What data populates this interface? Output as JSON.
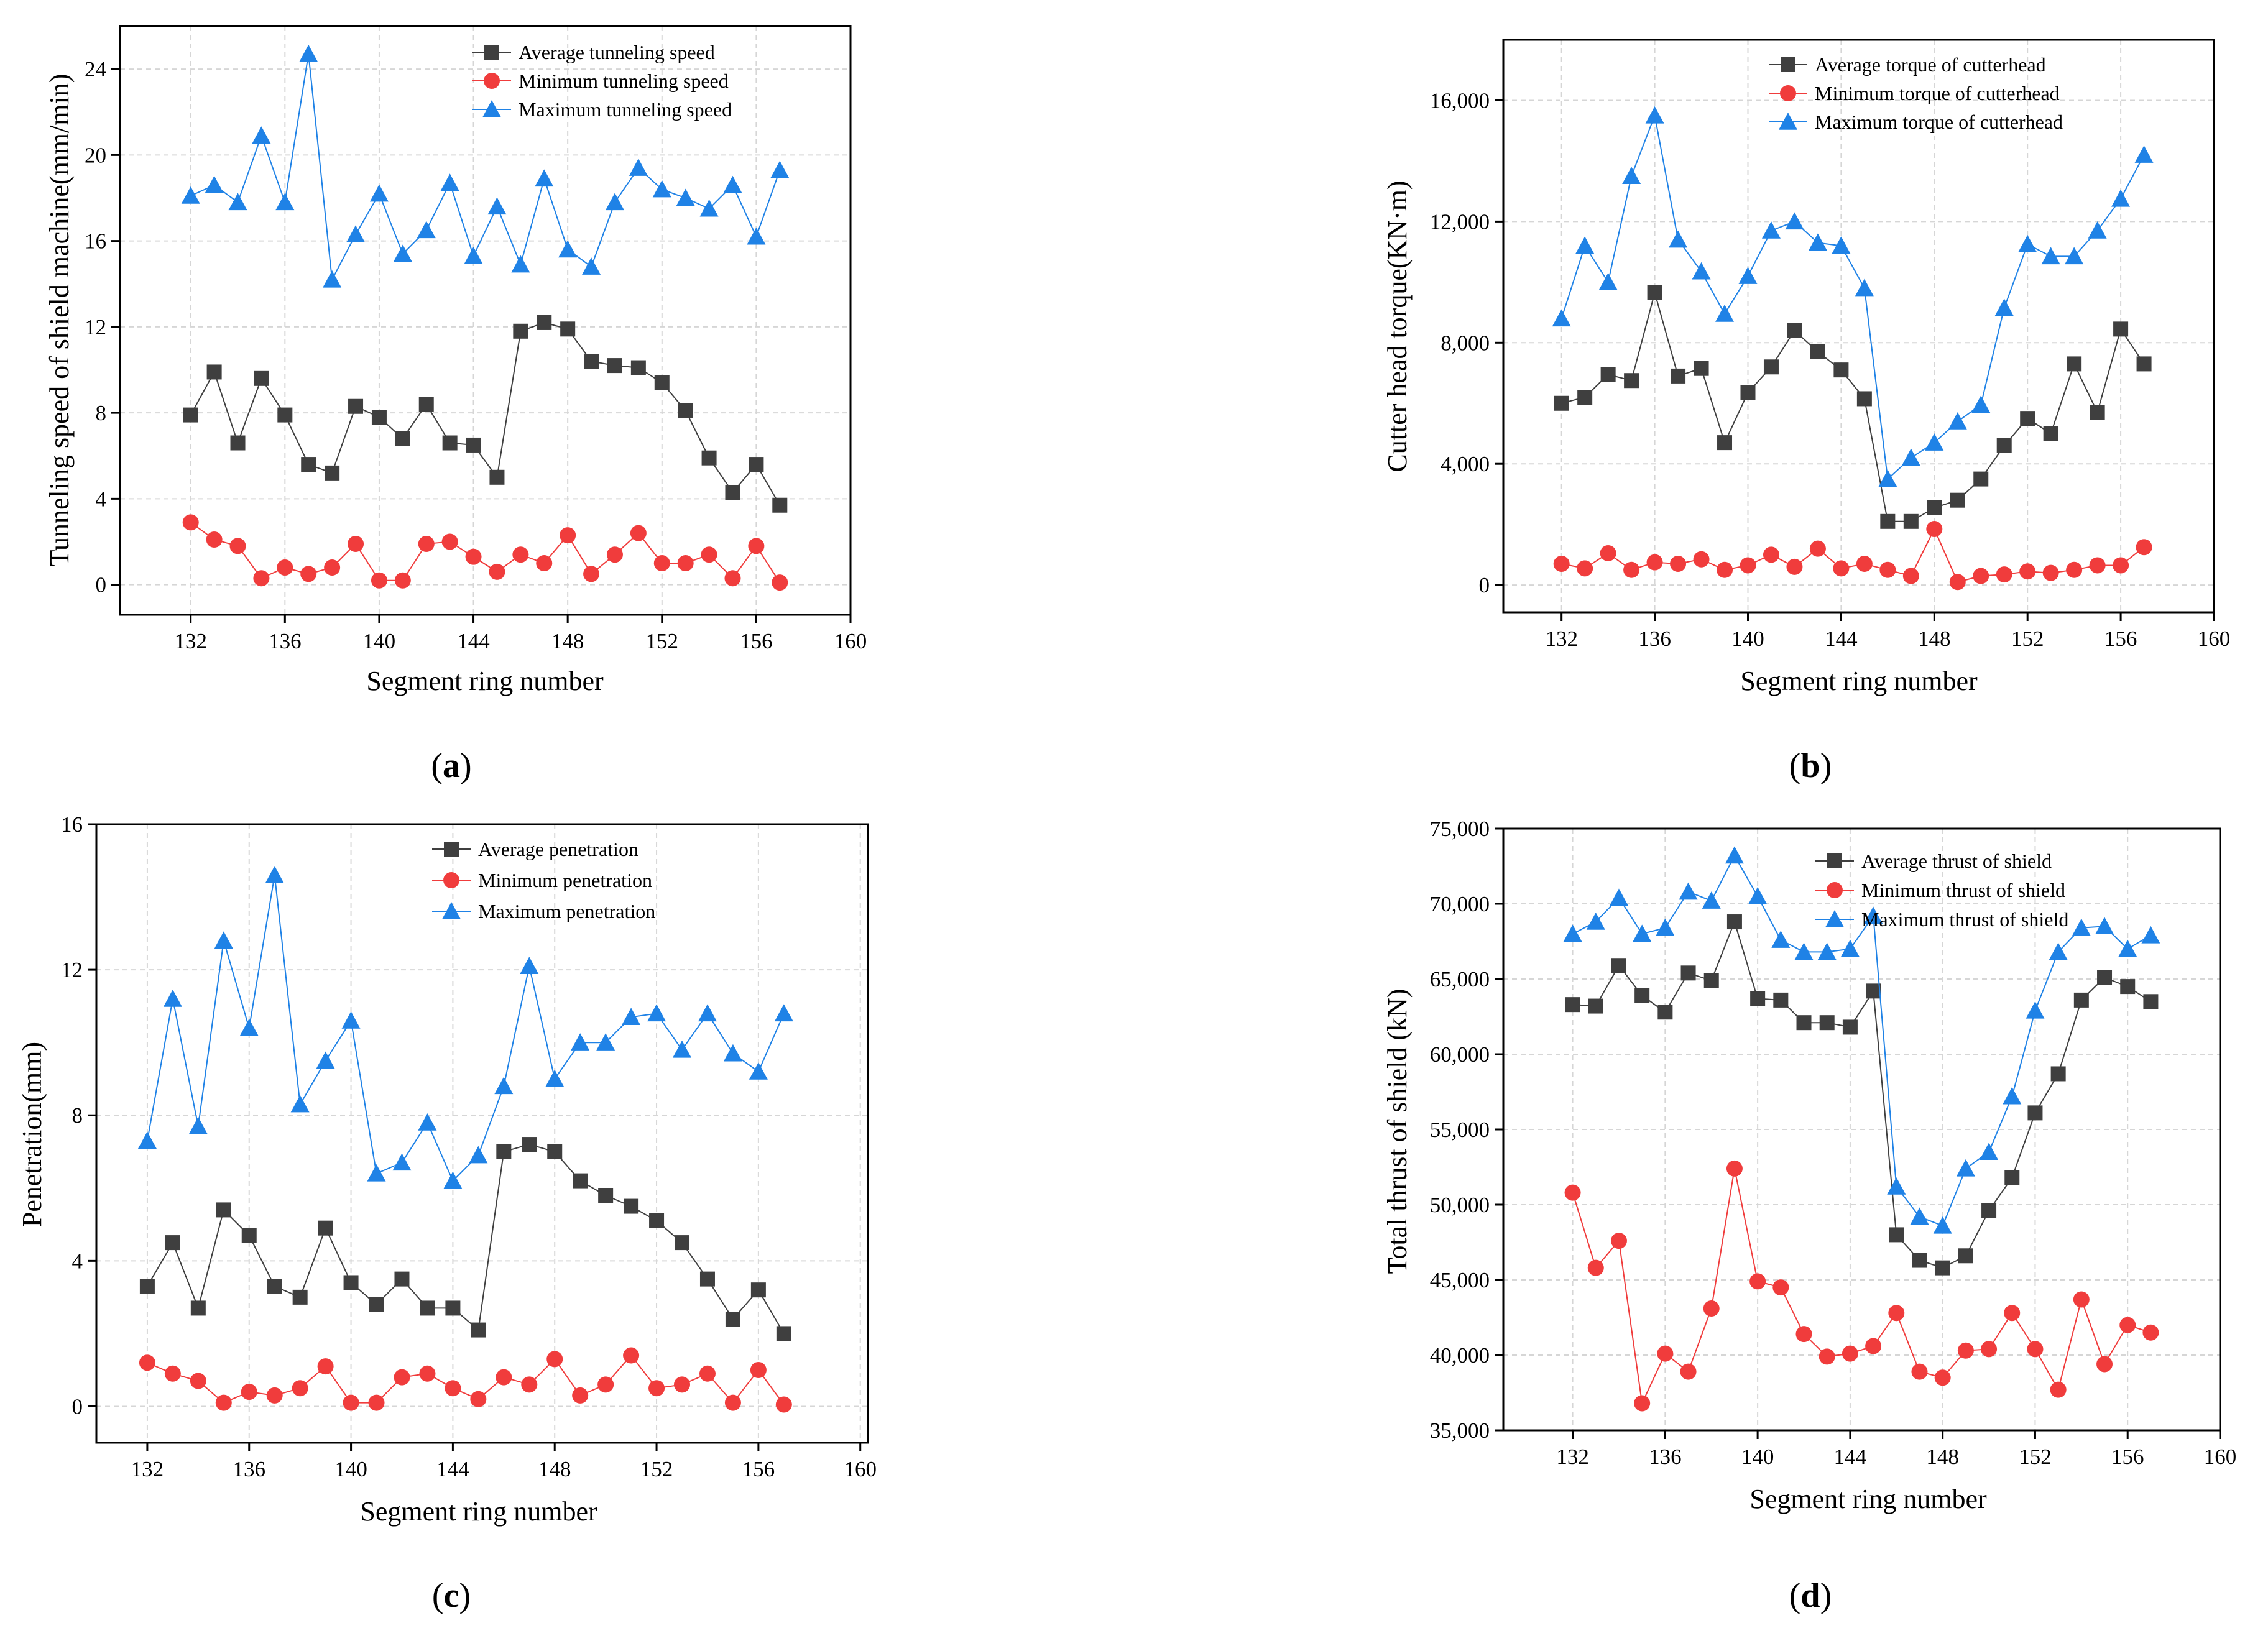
{
  "chart_data": [
    {
      "type": "line",
      "panel": "(a)",
      "panel_letter": "a",
      "xlabel": "Segment ring number",
      "ylabel": "Tunneling speed of shield machine(mm/min)",
      "xlim": [
        129,
        160
      ],
      "ylim": [
        -1.4,
        26
      ],
      "xticks": [
        132,
        136,
        140,
        144,
        148,
        152,
        156,
        160
      ],
      "xtick_labels": [
        "132",
        "136",
        "140",
        "144",
        "148",
        "152",
        "156",
        "160"
      ],
      "yticks": [
        0,
        4,
        8,
        12,
        16,
        20,
        24
      ],
      "ytick_labels": [
        "0",
        "4",
        "8",
        "12",
        "16",
        "20",
        "24"
      ],
      "grid": true,
      "legend_position": "top-right",
      "x": [
        132,
        133,
        134,
        135,
        136,
        137,
        138,
        139,
        140,
        141,
        142,
        143,
        144,
        145,
        146,
        147,
        148,
        149,
        150,
        151,
        152,
        153,
        154,
        155,
        156,
        157
      ],
      "series": [
        {
          "name": "Average tunneling speed",
          "marker": "square",
          "color": "#3f3f3f",
          "values": [
            7.9,
            9.9,
            6.6,
            9.6,
            7.9,
            5.6,
            5.2,
            8.3,
            7.8,
            6.8,
            8.4,
            6.6,
            6.5,
            5.0,
            11.8,
            12.2,
            11.9,
            10.4,
            10.2,
            10.1,
            9.4,
            8.1,
            5.9,
            4.3,
            5.6,
            3.7
          ]
        },
        {
          "name": "Minimum tunneling speed",
          "marker": "circle",
          "color": "#f03c3c",
          "values": [
            2.9,
            2.1,
            1.8,
            0.3,
            0.8,
            0.5,
            0.8,
            1.9,
            0.2,
            0.2,
            1.9,
            2.0,
            1.3,
            0.6,
            1.4,
            1.0,
            2.3,
            0.5,
            1.4,
            2.4,
            1.0,
            1.0,
            1.4,
            0.3,
            1.8,
            0.1
          ]
        },
        {
          "name": "Maximum tunneling speed",
          "marker": "triangle",
          "color": "#1f82e6",
          "values": [
            18.1,
            18.6,
            17.8,
            20.9,
            17.8,
            24.7,
            14.2,
            16.3,
            18.2,
            15.4,
            16.5,
            18.7,
            15.3,
            17.6,
            14.9,
            18.9,
            15.6,
            14.8,
            17.8,
            19.4,
            18.4,
            18.0,
            17.5,
            18.6,
            16.2,
            19.3
          ]
        }
      ]
    },
    {
      "type": "line",
      "panel": "(b)",
      "panel_letter": "b",
      "xlabel": "Segment ring number",
      "ylabel": "Cutter head torque(KN·m)",
      "xlim": [
        129.5,
        160
      ],
      "ylim": [
        -900,
        18000
      ],
      "xticks": [
        132,
        136,
        140,
        144,
        148,
        152,
        156,
        160
      ],
      "xtick_labels": [
        "132",
        "136",
        "140",
        "144",
        "148",
        "152",
        "156",
        "160"
      ],
      "yticks": [
        0,
        4000,
        8000,
        12000,
        16000
      ],
      "ytick_labels": [
        "0",
        "4,000",
        "8,000",
        "12,000",
        "16,000"
      ],
      "grid": true,
      "legend_position": "top-right",
      "x": [
        132,
        133,
        134,
        135,
        136,
        137,
        138,
        139,
        140,
        141,
        142,
        143,
        144,
        145,
        146,
        147,
        148,
        149,
        150,
        151,
        152,
        153,
        154,
        155,
        156,
        157
      ],
      "series": [
        {
          "name": "Average torque of cutterhead",
          "marker": "square",
          "color": "#3f3f3f",
          "values": [
            6000,
            6200,
            6950,
            6750,
            9650,
            6900,
            7150,
            4700,
            6350,
            7200,
            8400,
            7700,
            7100,
            6150,
            2100,
            2100,
            2550,
            2800,
            3500,
            4600,
            5500,
            5000,
            7300,
            5700,
            8450,
            7300
          ]
        },
        {
          "name": "Minimum torque of cutterhead",
          "marker": "circle",
          "color": "#f03c3c",
          "values": [
            700,
            550,
            1050,
            500,
            750,
            700,
            850,
            500,
            650,
            1000,
            600,
            1200,
            550,
            700,
            500,
            300,
            1850,
            100,
            300,
            350,
            450,
            400,
            500,
            650,
            650,
            1250
          ]
        },
        {
          "name": "Maximum torque of cutterhead",
          "marker": "triangle",
          "color": "#1f82e6",
          "values": [
            8800,
            11200,
            10000,
            13500,
            15500,
            11400,
            10350,
            8950,
            10200,
            11700,
            12000,
            11300,
            11200,
            9800,
            3500,
            4200,
            4700,
            5400,
            5950,
            9150,
            11250,
            10850,
            10850,
            11700,
            12750,
            14200
          ]
        }
      ]
    },
    {
      "type": "line",
      "panel": "(c)",
      "panel_letter": "c",
      "xlabel": "Segment ring number",
      "ylabel": "Penetration(mm)",
      "xlim": [
        130,
        160.3
      ],
      "ylim": [
        -1.0,
        16
      ],
      "xticks": [
        132,
        136,
        140,
        144,
        148,
        152,
        156,
        160
      ],
      "xtick_labels": [
        "132",
        "136",
        "140",
        "144",
        "148",
        "152",
        "156",
        "160"
      ],
      "yticks": [
        0,
        4,
        8,
        12,
        16
      ],
      "ytick_labels": [
        "0",
        "4",
        "8",
        "12",
        "16"
      ],
      "grid": true,
      "legend_position": "top-right",
      "x": [
        132,
        133,
        134,
        135,
        136,
        137,
        138,
        139,
        140,
        141,
        142,
        143,
        144,
        145,
        146,
        147,
        148,
        149,
        150,
        151,
        152,
        153,
        154,
        155,
        156,
        157
      ],
      "series": [
        {
          "name": "Average penetration",
          "marker": "square",
          "color": "#3f3f3f",
          "values": [
            3.3,
            4.5,
            2.7,
            5.4,
            4.7,
            3.3,
            3.0,
            4.9,
            3.4,
            2.8,
            3.5,
            2.7,
            2.7,
            2.1,
            7.0,
            7.2,
            7.0,
            6.2,
            5.8,
            5.5,
            5.1,
            4.5,
            3.5,
            2.4,
            3.2,
            2.0
          ]
        },
        {
          "name": "Minimum penetration",
          "marker": "circle",
          "color": "#f03c3c",
          "values": [
            1.2,
            0.9,
            0.7,
            0.1,
            0.4,
            0.3,
            0.5,
            1.1,
            0.1,
            0.1,
            0.8,
            0.9,
            0.5,
            0.2,
            0.8,
            0.6,
            1.3,
            0.3,
            0.6,
            1.4,
            0.5,
            0.6,
            0.9,
            0.1,
            1.0,
            0.05
          ]
        },
        {
          "name": "Maximum penetration",
          "marker": "triangle",
          "color": "#1f82e6",
          "values": [
            7.3,
            11.2,
            7.7,
            12.8,
            10.4,
            14.6,
            8.3,
            9.5,
            10.6,
            6.4,
            6.7,
            7.8,
            6.2,
            6.9,
            8.8,
            12.1,
            9.0,
            10.0,
            10.0,
            10.7,
            10.8,
            9.8,
            10.8,
            9.7,
            9.2,
            10.8
          ]
        }
      ]
    },
    {
      "type": "line",
      "panel": "(d)",
      "panel_letter": "d",
      "xlabel": "Segment ring number",
      "ylabel": "Total thrust of shield (kN)",
      "xlim": [
        129,
        160
      ],
      "ylim": [
        35000,
        75000
      ],
      "xticks": [
        132,
        136,
        140,
        144,
        148,
        152,
        156,
        160
      ],
      "xtick_labels": [
        "132",
        "136",
        "140",
        "144",
        "148",
        "152",
        "156",
        "160"
      ],
      "yticks": [
        35000,
        40000,
        45000,
        50000,
        55000,
        60000,
        65000,
        70000,
        75000
      ],
      "ytick_labels": [
        "35,000",
        "40,000",
        "45,000",
        "50,000",
        "55,000",
        "60,000",
        "65,000",
        "70,000",
        "75,000"
      ],
      "grid": true,
      "legend_position": "top-right",
      "x": [
        132,
        133,
        134,
        135,
        136,
        137,
        138,
        139,
        140,
        141,
        142,
        143,
        144,
        145,
        146,
        147,
        148,
        149,
        150,
        151,
        152,
        153,
        154,
        155,
        156,
        157
      ],
      "series": [
        {
          "name": "Average thrust of shield",
          "marker": "square",
          "color": "#3f3f3f",
          "values": [
            63300,
            63200,
            65900,
            63900,
            62800,
            65400,
            64900,
            68800,
            63700,
            63600,
            62100,
            62100,
            61800,
            64200,
            48000,
            46300,
            45800,
            46600,
            49600,
            51800,
            56100,
            58700,
            63600,
            65100,
            64500,
            63500
          ]
        },
        {
          "name": "Minimum thrust of shield",
          "marker": "circle",
          "color": "#f03c3c",
          "values": [
            50800,
            45800,
            47600,
            36800,
            40100,
            38900,
            43100,
            52400,
            44900,
            44500,
            41400,
            39900,
            40100,
            40600,
            42800,
            38900,
            38500,
            40300,
            40400,
            42800,
            40400,
            37700,
            43700,
            39400,
            42000,
            41500
          ]
        },
        {
          "name": "Maximum thrust of shield",
          "marker": "triangle",
          "color": "#1f82e6",
          "values": [
            68000,
            68800,
            70400,
            68000,
            68400,
            70800,
            70200,
            73200,
            70500,
            67600,
            66800,
            66800,
            67000,
            69200,
            51200,
            49200,
            48600,
            52400,
            53500,
            57200,
            62900,
            66800,
            68400,
            68500,
            67000,
            67900
          ]
        }
      ]
    }
  ]
}
